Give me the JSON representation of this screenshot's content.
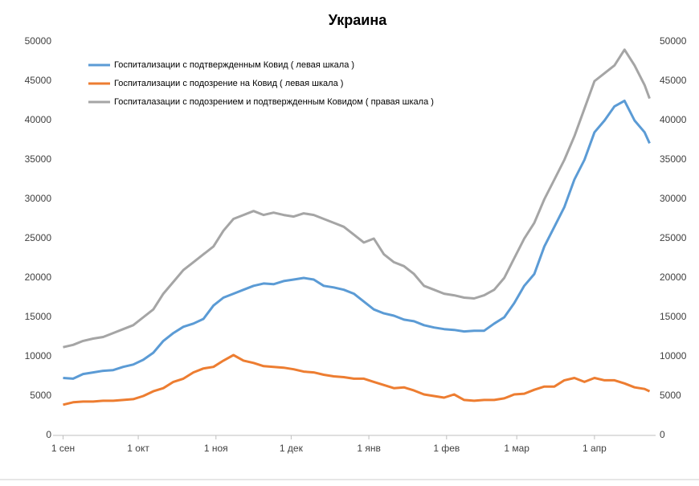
{
  "chart_data": {
    "type": "line",
    "title": "Украина",
    "x": [
      0,
      4,
      8,
      12,
      16,
      20,
      24,
      28,
      32,
      36,
      40,
      44,
      48,
      52,
      56,
      60,
      64,
      68,
      72,
      76,
      80,
      84,
      88,
      92,
      96,
      100,
      104,
      108,
      112,
      116,
      120,
      124,
      128,
      132,
      136,
      140,
      144,
      148,
      152,
      156,
      160,
      164,
      168,
      172,
      176,
      180,
      184,
      188,
      192,
      196,
      200,
      204,
      208,
      212,
      216,
      220,
      224,
      228,
      232,
      234
    ],
    "xlim": [
      -4,
      238
    ],
    "xticks": [
      {
        "value": 0,
        "label": "1 сен"
      },
      {
        "value": 30,
        "label": "1 окт"
      },
      {
        "value": 61,
        "label": "1 ноя"
      },
      {
        "value": 91,
        "label": "1 дек"
      },
      {
        "value": 122,
        "label": "1 янв"
      },
      {
        "value": 153,
        "label": "1 фев"
      },
      {
        "value": 181,
        "label": "1 мар"
      },
      {
        "value": 212,
        "label": "1 апр"
      }
    ],
    "ylim": [
      0,
      50000
    ],
    "yticks": [
      0,
      5000,
      10000,
      15000,
      20000,
      25000,
      30000,
      35000,
      40000,
      45000,
      50000
    ],
    "y2lim": [
      0,
      50000
    ],
    "y2ticks": [
      0,
      5000,
      10000,
      15000,
      20000,
      25000,
      30000,
      35000,
      40000,
      45000,
      50000
    ],
    "series": [
      {
        "name": "Госпитализации с подтвержденным Ковид ( левая шкала )",
        "color": "#5b9bd5",
        "values": [
          7300,
          7200,
          7800,
          8000,
          8200,
          8300,
          8700,
          9000,
          9600,
          10500,
          12000,
          13000,
          13800,
          14200,
          14800,
          16500,
          17500,
          18000,
          18500,
          19000,
          19300,
          19200,
          19600,
          19800,
          20000,
          19800,
          19000,
          18800,
          18500,
          18000,
          17000,
          16000,
          15500,
          15200,
          14700,
          14500,
          14000,
          13700,
          13500,
          13400,
          13200,
          13300,
          13300,
          14200,
          15000,
          16800,
          19000,
          20500,
          24000,
          26500,
          29000,
          32500,
          35000,
          38500,
          40000,
          41800,
          42500,
          40000,
          38500,
          37100
        ]
      },
      {
        "name": "Госпитализации с подозрение на Ковид ( левая шкала )",
        "color": "#ed7d31",
        "values": [
          3900,
          4200,
          4300,
          4300,
          4400,
          4400,
          4500,
          4600,
          5000,
          5600,
          6000,
          6800,
          7200,
          8000,
          8500,
          8700,
          9500,
          10200,
          9500,
          9200,
          8800,
          8700,
          8600,
          8400,
          8100,
          8000,
          7700,
          7500,
          7400,
          7200,
          7200,
          6800,
          6400,
          6000,
          6100,
          5700,
          5200,
          5000,
          4800,
          5200,
          4500,
          4400,
          4500,
          4500,
          4700,
          5200,
          5300,
          5800,
          6200,
          6200,
          7000,
          7300,
          6800,
          7300,
          7000,
          7000,
          6600,
          6100,
          5900,
          5600
        ]
      },
      {
        "name": "Госпиталазации с подозрением и подтвержденным Ковидом ( правая шкала )",
        "color": "#a5a5a5",
        "axis": "y2",
        "values": [
          11200,
          11500,
          12000,
          12300,
          12500,
          13000,
          13500,
          14000,
          15000,
          16000,
          18000,
          19500,
          21000,
          22000,
          23000,
          24000,
          26000,
          27500,
          28000,
          28500,
          28000,
          28300,
          28000,
          27800,
          28200,
          28000,
          27500,
          27000,
          26500,
          25500,
          24500,
          25000,
          23000,
          22000,
          21500,
          20500,
          19000,
          18500,
          18000,
          17800,
          17500,
          17400,
          17800,
          18500,
          20000,
          22500,
          25000,
          27000,
          30000,
          32500,
          35000,
          38000,
          41500,
          45000,
          46000,
          47000,
          49000,
          47000,
          44500,
          42800
        ]
      }
    ]
  }
}
